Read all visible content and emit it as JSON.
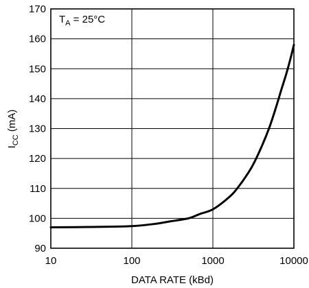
{
  "chart_data": {
    "type": "line",
    "xscale": "log",
    "xlim": [
      10,
      10000
    ],
    "ylim": [
      90,
      170
    ],
    "xticks": [
      10,
      100,
      1000,
      10000
    ],
    "xtick_labels": [
      "10",
      "100",
      "1000",
      "10000"
    ],
    "yticks": [
      90,
      100,
      110,
      120,
      130,
      140,
      150,
      160,
      170
    ],
    "ytick_labels": [
      "90",
      "100",
      "110",
      "120",
      "130",
      "140",
      "150",
      "160",
      "170"
    ],
    "xlabel": "DATA RATE (kBd)",
    "ylabel": {
      "main": "I",
      "sub": "CC",
      "unit": " (mA)"
    },
    "grid": true,
    "annotation": {
      "main": "T",
      "sub": "A",
      "rest": " = 25°C"
    },
    "series": [
      {
        "x": [
          10,
          30,
          100,
          200,
          300,
          500,
          700,
          1000,
          1500,
          2000,
          3000,
          4000,
          5000,
          6000,
          7000,
          8000,
          9000,
          10000
        ],
        "y": [
          97,
          97.1,
          97.4,
          98.2,
          99,
          100,
          101.5,
          103,
          106.5,
          110,
          117,
          124,
          130.5,
          137,
          143,
          148,
          153,
          158
        ]
      }
    ]
  }
}
